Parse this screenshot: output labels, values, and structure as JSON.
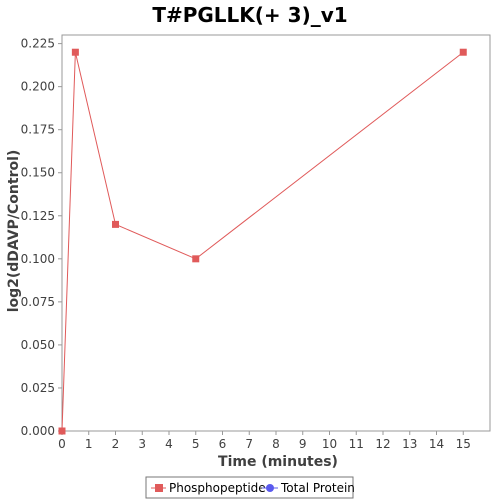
{
  "chart_data": {
    "type": "line",
    "title": "T#PGLLK(+ 3)_v1",
    "xlabel": "Time (minutes)",
    "ylabel": "log2(dDAVP/Control)",
    "xlim": [
      0,
      16
    ],
    "ylim": [
      0,
      0.23
    ],
    "x_ticks": [
      0,
      1,
      2,
      3,
      4,
      5,
      6,
      7,
      8,
      9,
      10,
      11,
      12,
      13,
      14,
      15
    ],
    "y_ticks": [
      "0.000",
      "0.025",
      "0.050",
      "0.075",
      "0.100",
      "0.125",
      "0.150",
      "0.175",
      "0.200",
      "0.225"
    ],
    "grid": false,
    "legend_position": "bottom",
    "series": [
      {
        "name": "Phosphopeptide",
        "color": "#e05a5a",
        "marker": "square",
        "points": [
          {
            "x": 0,
            "y": 0.0
          },
          {
            "x": 0.5,
            "y": 0.22
          },
          {
            "x": 2,
            "y": 0.12
          },
          {
            "x": 5,
            "y": 0.1
          },
          {
            "x": 15,
            "y": 0.22
          }
        ]
      },
      {
        "name": "Total Protein",
        "color": "#5a5aee",
        "marker": "circle",
        "points": []
      }
    ]
  }
}
